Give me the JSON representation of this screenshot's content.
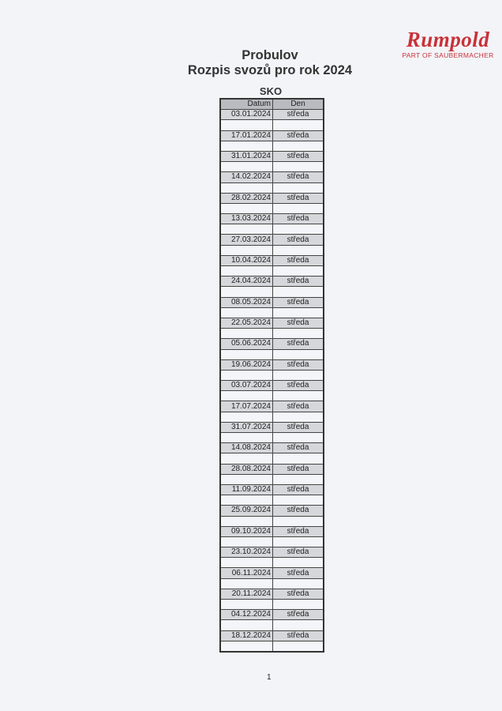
{
  "logo": {
    "name": "Rumpold",
    "tagline": "PART OF SAUBERMACHER",
    "color": "#c8323a"
  },
  "title": "Probulov",
  "subtitle": "Rozpis svozů pro rok 2024",
  "section": "SKO",
  "table": {
    "headers": [
      "Datum",
      "Den"
    ],
    "rows": [
      {
        "date": "03.01.2024",
        "day": "středa"
      },
      {
        "date": "17.01.2024",
        "day": "středa"
      },
      {
        "date": "31.01.2024",
        "day": "středa"
      },
      {
        "date": "14.02.2024",
        "day": "středa"
      },
      {
        "date": "28.02.2024",
        "day": "středa"
      },
      {
        "date": "13.03.2024",
        "day": "středa"
      },
      {
        "date": "27.03.2024",
        "day": "středa"
      },
      {
        "date": "10.04.2024",
        "day": "středa"
      },
      {
        "date": "24.04.2024",
        "day": "středa"
      },
      {
        "date": "08.05.2024",
        "day": "středa"
      },
      {
        "date": "22.05.2024",
        "day": "středa"
      },
      {
        "date": "05.06.2024",
        "day": "středa"
      },
      {
        "date": "19.06.2024",
        "day": "středa"
      },
      {
        "date": "03.07.2024",
        "day": "středa"
      },
      {
        "date": "17.07.2024",
        "day": "středa"
      },
      {
        "date": "31.07.2024",
        "day": "středa"
      },
      {
        "date": "14.08.2024",
        "day": "středa"
      },
      {
        "date": "28.08.2024",
        "day": "středa"
      },
      {
        "date": "11.09.2024",
        "day": "středa"
      },
      {
        "date": "25.09.2024",
        "day": "středa"
      },
      {
        "date": "09.10.2024",
        "day": "středa"
      },
      {
        "date": "23.10.2024",
        "day": "středa"
      },
      {
        "date": "06.11.2024",
        "day": "středa"
      },
      {
        "date": "20.11.2024",
        "day": "středa"
      },
      {
        "date": "04.12.2024",
        "day": "středa"
      },
      {
        "date": "18.12.2024",
        "day": "středa"
      }
    ]
  },
  "page_number": "1"
}
